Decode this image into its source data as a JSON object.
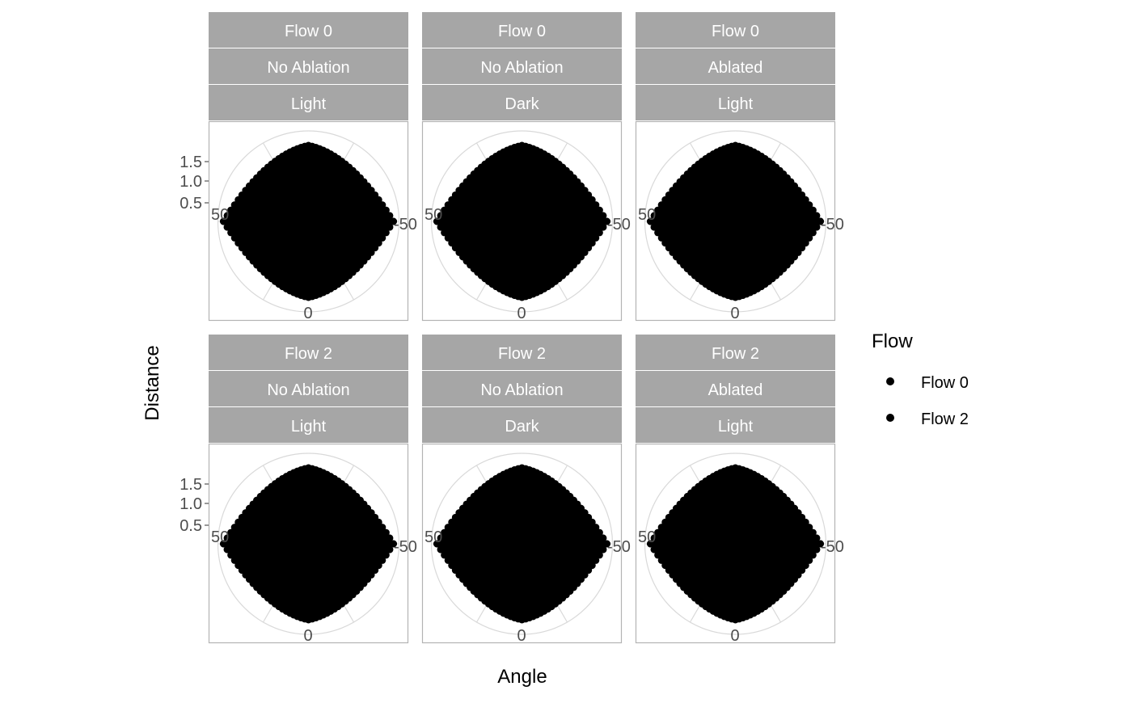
{
  "chart_data": {
    "type": "scatter",
    "coordinate_system": "polar",
    "xlabel": "Angle",
    "ylabel": "Distance",
    "legend": {
      "title": "Flow",
      "placement": "right",
      "entries": [
        "Flow 0",
        "Flow 2"
      ]
    },
    "angle_ticks": [
      "50",
      "-50",
      "0"
    ],
    "radius_ticks": [
      "0.5",
      "1.0",
      "1.5"
    ],
    "grid": true,
    "colors": {
      "points": "#000000",
      "strip_bg": "#a6a6a6",
      "strip_text": "#ffffff",
      "panel_border": "#b3b3b3",
      "gridline": "#d9d9d9",
      "tick_text": "#4d4d4d"
    },
    "facets": [
      {
        "strips": [
          "Flow 0",
          "No Ablation",
          "Light"
        ]
      },
      {
        "strips": [
          "Flow 0",
          "No Ablation",
          "Dark"
        ]
      },
      {
        "strips": [
          "Flow 0",
          "Ablated",
          "Light"
        ]
      },
      {
        "strips": [
          "Flow 2",
          "No Ablation",
          "Light"
        ]
      },
      {
        "strips": [
          "Flow 2",
          "No Ablation",
          "Dark"
        ]
      },
      {
        "strips": [
          "Flow 2",
          "Ablated",
          "Light"
        ]
      }
    ]
  }
}
